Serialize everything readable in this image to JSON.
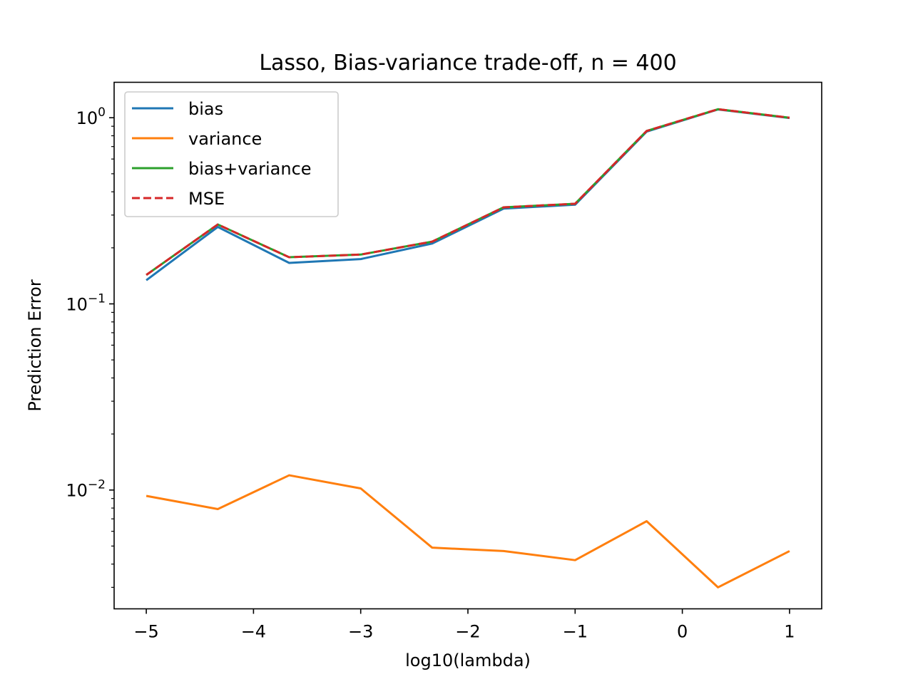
{
  "chart_data": {
    "type": "line",
    "title": "Lasso, Bias-variance trade-off, n = 400",
    "xlabel": "log10(lambda)",
    "ylabel": "Prediction Error",
    "yscale": "log",
    "xlim": [
      -5.3,
      1.3
    ],
    "ylim": [
      0.0023,
      1.55
    ],
    "x_ticks": [
      -5,
      -4,
      -3,
      -2,
      -1,
      0,
      1
    ],
    "x_tick_labels": [
      "−5",
      "−4",
      "−3",
      "−2",
      "−1",
      "0",
      "1"
    ],
    "y_ticks": [
      {
        "value": 1,
        "base": "10",
        "exp": "0"
      },
      {
        "value": 0.1,
        "base": "10",
        "exp": "−1"
      },
      {
        "value": 0.01,
        "base": "10",
        "exp": "−2"
      }
    ],
    "grid": false,
    "legend_position": "top-left",
    "x": [
      -5,
      -4.333,
      -3.667,
      -3,
      -2.333,
      -1.667,
      -1,
      -0.333,
      0.333,
      1
    ],
    "series": [
      {
        "name": "bias",
        "color": "#1f77b4",
        "dash": "solid",
        "values": [
          0.134,
          0.259,
          0.166,
          0.174,
          0.211,
          0.325,
          0.341,
          0.842,
          1.108,
          0.996
        ]
      },
      {
        "name": "variance",
        "color": "#ff7f0e",
        "dash": "solid",
        "values": [
          0.0093,
          0.0079,
          0.012,
          0.0102,
          0.0049,
          0.0047,
          0.0042,
          0.0068,
          0.003,
          0.0047
        ]
      },
      {
        "name": "bias+variance",
        "color": "#2ca02c",
        "dash": "solid",
        "values": [
          0.143,
          0.267,
          0.178,
          0.184,
          0.216,
          0.33,
          0.345,
          0.849,
          1.111,
          1.0
        ]
      },
      {
        "name": "MSE",
        "color": "#d62728",
        "dash": "dashed",
        "values": [
          0.143,
          0.267,
          0.178,
          0.184,
          0.216,
          0.33,
          0.345,
          0.849,
          1.111,
          1.0
        ]
      }
    ]
  }
}
